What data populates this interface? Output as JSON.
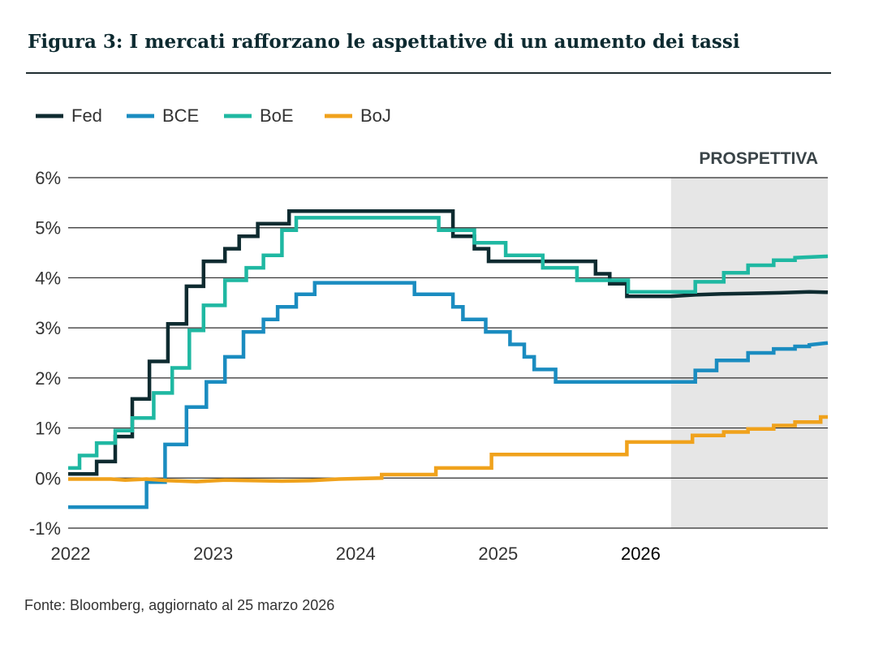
{
  "title": "Figura 3: I mercati rafforzano le aspettative di un aumento dei tassi",
  "source": "Fonte: Bloomberg, aggiornato al 25 marzo 2026",
  "chart_data": {
    "type": "line",
    "title": "Figura 3: I mercati rafforzano le aspettative di un aumento dei tassi",
    "xlabel": "",
    "ylabel": "",
    "x_range": [
      2022.0,
      2027.33
    ],
    "ylim": [
      -1,
      6
    ],
    "y_ticks": [
      "-1%",
      "0%",
      "1%",
      "2%",
      "3%",
      "4%",
      "5%",
      "6%"
    ],
    "x_ticks": [
      {
        "label": "2022",
        "value": 2022,
        "bold": false
      },
      {
        "label": "2023",
        "value": 2023,
        "bold": false
      },
      {
        "label": "2024",
        "value": 2024,
        "bold": false
      },
      {
        "label": "2025",
        "value": 2025,
        "bold": false
      },
      {
        "label": "2026",
        "value": 2026,
        "bold": true
      }
    ],
    "grid": true,
    "legend_position": "top-left",
    "forecast": {
      "label": "PROSPETTIVA",
      "start": 2026.23,
      "end": 2027.33,
      "color": "#e6e6e6"
    },
    "series": [
      {
        "name": "Fed",
        "color": "#0e2b30",
        "points": [
          [
            2022.0,
            0.08
          ],
          [
            2022.2,
            0.08
          ],
          [
            2022.2,
            0.33
          ],
          [
            2022.33,
            0.33
          ],
          [
            2022.33,
            0.83
          ],
          [
            2022.45,
            0.83
          ],
          [
            2022.45,
            1.58
          ],
          [
            2022.57,
            1.58
          ],
          [
            2022.57,
            2.33
          ],
          [
            2022.7,
            2.33
          ],
          [
            2022.7,
            3.08
          ],
          [
            2022.83,
            3.08
          ],
          [
            2022.83,
            3.83
          ],
          [
            2022.95,
            3.83
          ],
          [
            2022.95,
            4.33
          ],
          [
            2023.1,
            4.33
          ],
          [
            2023.1,
            4.58
          ],
          [
            2023.2,
            4.58
          ],
          [
            2023.2,
            4.83
          ],
          [
            2023.33,
            4.83
          ],
          [
            2023.33,
            5.08
          ],
          [
            2023.55,
            5.08
          ],
          [
            2023.55,
            5.33
          ],
          [
            2024.7,
            5.33
          ],
          [
            2024.7,
            4.83
          ],
          [
            2024.85,
            4.83
          ],
          [
            2024.85,
            4.58
          ],
          [
            2024.95,
            4.58
          ],
          [
            2024.95,
            4.33
          ],
          [
            2025.7,
            4.33
          ],
          [
            2025.7,
            4.08
          ],
          [
            2025.8,
            4.08
          ],
          [
            2025.8,
            3.88
          ],
          [
            2025.92,
            3.88
          ],
          [
            2025.92,
            3.63
          ],
          [
            2026.23,
            3.63
          ],
          [
            2026.4,
            3.66
          ],
          [
            2026.6,
            3.68
          ],
          [
            2026.8,
            3.69
          ],
          [
            2027.0,
            3.7
          ],
          [
            2027.2,
            3.72
          ],
          [
            2027.33,
            3.71
          ]
        ]
      },
      {
        "name": "BCE",
        "color": "#1a8cc0",
        "points": [
          [
            2022.0,
            -0.58
          ],
          [
            2022.55,
            -0.58
          ],
          [
            2022.55,
            -0.08
          ],
          [
            2022.68,
            -0.08
          ],
          [
            2022.68,
            0.67
          ],
          [
            2022.83,
            0.67
          ],
          [
            2022.83,
            1.42
          ],
          [
            2022.97,
            1.42
          ],
          [
            2022.97,
            1.92
          ],
          [
            2023.1,
            1.92
          ],
          [
            2023.1,
            2.42
          ],
          [
            2023.23,
            2.42
          ],
          [
            2023.23,
            2.92
          ],
          [
            2023.37,
            2.92
          ],
          [
            2023.37,
            3.17
          ],
          [
            2023.47,
            3.17
          ],
          [
            2023.47,
            3.42
          ],
          [
            2023.6,
            3.42
          ],
          [
            2023.6,
            3.67
          ],
          [
            2023.73,
            3.67
          ],
          [
            2023.73,
            3.9
          ],
          [
            2024.43,
            3.9
          ],
          [
            2024.43,
            3.67
          ],
          [
            2024.7,
            3.67
          ],
          [
            2024.7,
            3.42
          ],
          [
            2024.77,
            3.42
          ],
          [
            2024.77,
            3.17
          ],
          [
            2024.93,
            3.17
          ],
          [
            2024.93,
            2.92
          ],
          [
            2025.1,
            2.92
          ],
          [
            2025.1,
            2.67
          ],
          [
            2025.2,
            2.67
          ],
          [
            2025.2,
            2.42
          ],
          [
            2025.27,
            2.42
          ],
          [
            2025.27,
            2.17
          ],
          [
            2025.42,
            2.17
          ],
          [
            2025.42,
            1.92
          ],
          [
            2026.17,
            1.92
          ],
          [
            2026.4,
            1.92
          ],
          [
            2026.4,
            2.15
          ],
          [
            2026.55,
            2.15
          ],
          [
            2026.55,
            2.35
          ],
          [
            2026.77,
            2.35
          ],
          [
            2026.77,
            2.5
          ],
          [
            2026.95,
            2.5
          ],
          [
            2026.95,
            2.58
          ],
          [
            2027.1,
            2.58
          ],
          [
            2027.1,
            2.63
          ],
          [
            2027.2,
            2.63
          ],
          [
            2027.2,
            2.66
          ],
          [
            2027.33,
            2.7
          ]
        ]
      },
      {
        "name": "BoE",
        "color": "#1fb8a2",
        "points": [
          [
            2022.0,
            0.2
          ],
          [
            2022.08,
            0.2
          ],
          [
            2022.08,
            0.45
          ],
          [
            2022.2,
            0.45
          ],
          [
            2022.2,
            0.7
          ],
          [
            2022.33,
            0.7
          ],
          [
            2022.33,
            0.95
          ],
          [
            2022.45,
            0.95
          ],
          [
            2022.45,
            1.2
          ],
          [
            2022.6,
            1.2
          ],
          [
            2022.6,
            1.7
          ],
          [
            2022.73,
            1.7
          ],
          [
            2022.73,
            2.2
          ],
          [
            2022.85,
            2.2
          ],
          [
            2022.85,
            2.95
          ],
          [
            2022.95,
            2.95
          ],
          [
            2022.95,
            3.45
          ],
          [
            2023.1,
            3.45
          ],
          [
            2023.1,
            3.95
          ],
          [
            2023.25,
            3.95
          ],
          [
            2023.25,
            4.2
          ],
          [
            2023.37,
            4.2
          ],
          [
            2023.37,
            4.45
          ],
          [
            2023.5,
            4.45
          ],
          [
            2023.5,
            4.95
          ],
          [
            2023.6,
            4.95
          ],
          [
            2023.6,
            5.2
          ],
          [
            2024.6,
            5.2
          ],
          [
            2024.6,
            4.95
          ],
          [
            2024.85,
            4.95
          ],
          [
            2024.85,
            4.7
          ],
          [
            2025.07,
            4.7
          ],
          [
            2025.07,
            4.45
          ],
          [
            2025.33,
            4.45
          ],
          [
            2025.33,
            4.2
          ],
          [
            2025.57,
            4.2
          ],
          [
            2025.57,
            3.95
          ],
          [
            2025.93,
            3.95
          ],
          [
            2025.93,
            3.72
          ],
          [
            2026.17,
            3.72
          ],
          [
            2026.4,
            3.72
          ],
          [
            2026.4,
            3.92
          ],
          [
            2026.6,
            3.92
          ],
          [
            2026.6,
            4.1
          ],
          [
            2026.77,
            4.1
          ],
          [
            2026.77,
            4.25
          ],
          [
            2026.95,
            4.25
          ],
          [
            2026.95,
            4.35
          ],
          [
            2027.1,
            4.35
          ],
          [
            2027.1,
            4.4
          ],
          [
            2027.33,
            4.43
          ]
        ]
      },
      {
        "name": "BoJ",
        "color": "#f0a21c",
        "points": [
          [
            2022.0,
            -0.02
          ],
          [
            2022.3,
            -0.02
          ],
          [
            2022.4,
            -0.04
          ],
          [
            2022.55,
            -0.02
          ],
          [
            2022.7,
            -0.05
          ],
          [
            2022.9,
            -0.07
          ],
          [
            2023.1,
            -0.04
          ],
          [
            2023.3,
            -0.05
          ],
          [
            2023.5,
            -0.06
          ],
          [
            2023.7,
            -0.05
          ],
          [
            2023.9,
            -0.02
          ],
          [
            2024.2,
            0.0
          ],
          [
            2024.2,
            0.07
          ],
          [
            2024.58,
            0.07
          ],
          [
            2024.58,
            0.2
          ],
          [
            2024.97,
            0.2
          ],
          [
            2024.97,
            0.47
          ],
          [
            2025.92,
            0.47
          ],
          [
            2025.92,
            0.72
          ],
          [
            2026.23,
            0.72
          ],
          [
            2026.38,
            0.72
          ],
          [
            2026.38,
            0.85
          ],
          [
            2026.6,
            0.85
          ],
          [
            2026.6,
            0.92
          ],
          [
            2026.77,
            0.92
          ],
          [
            2026.77,
            0.98
          ],
          [
            2026.95,
            0.98
          ],
          [
            2026.95,
            1.05
          ],
          [
            2027.1,
            1.05
          ],
          [
            2027.1,
            1.12
          ],
          [
            2027.28,
            1.12
          ],
          [
            2027.28,
            1.22
          ],
          [
            2027.33,
            1.22
          ]
        ]
      }
    ]
  }
}
